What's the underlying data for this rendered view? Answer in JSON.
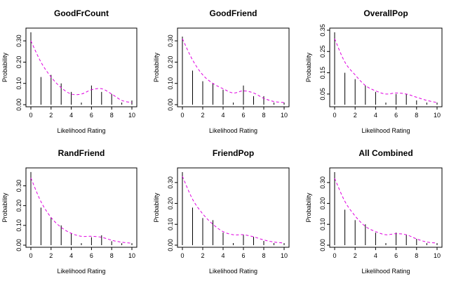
{
  "chart_data": [
    {
      "type": "bar",
      "title": "GoodFrCount",
      "xlabel": "Likelihood Rating",
      "ylabel": "Probability",
      "x": [
        0,
        1,
        2,
        3,
        4,
        5,
        6,
        7,
        8,
        9,
        10
      ],
      "xticks": [
        "0",
        "2",
        "4",
        "6",
        "8",
        "10"
      ],
      "xlim": [
        0,
        10
      ],
      "ylim": [
        0,
        0.35
      ],
      "yticks": [
        "0.00",
        "0.10",
        "0.20",
        "0.30"
      ],
      "values": [
        0.34,
        0.13,
        0.14,
        0.1,
        0.06,
        0.01,
        0.09,
        0.06,
        0.05,
        0.01,
        0.02
      ],
      "density": [
        0.3,
        0.2,
        0.13,
        0.08,
        0.05,
        0.05,
        0.07,
        0.075,
        0.05,
        0.02,
        0.01
      ]
    },
    {
      "type": "bar",
      "title": "GoodFriend",
      "xlabel": "Likelihood Rating",
      "ylabel": "Probability",
      "x": [
        0,
        1,
        2,
        3,
        4,
        5,
        6,
        7,
        8,
        9,
        10
      ],
      "xticks": [
        "0",
        "2",
        "4",
        "6",
        "8",
        "10"
      ],
      "xlim": [
        0,
        10
      ],
      "ylim": [
        0,
        0.35
      ],
      "yticks": [
        "0.00",
        "0.10",
        "0.20",
        "0.30"
      ],
      "values": [
        0.32,
        0.16,
        0.11,
        0.1,
        0.07,
        0.01,
        0.09,
        0.04,
        0.04,
        0.01,
        0.01
      ],
      "density": [
        0.31,
        0.21,
        0.14,
        0.1,
        0.075,
        0.055,
        0.065,
        0.055,
        0.03,
        0.015,
        0.01
      ]
    },
    {
      "type": "bar",
      "title": "OverallPop",
      "xlabel": "Likelihood Rating",
      "ylabel": "Probability",
      "x": [
        0,
        1,
        2,
        3,
        4,
        5,
        6,
        7,
        8,
        9,
        10
      ],
      "xticks": [
        "0",
        "2",
        "4",
        "6",
        "8",
        "10"
      ],
      "xlim": [
        0,
        10
      ],
      "ylim": [
        0,
        0.35
      ],
      "yticks": [
        "0.05",
        "0.15",
        "0.25",
        "0.35"
      ],
      "values": [
        0.34,
        0.15,
        0.12,
        0.09,
        0.06,
        0.01,
        0.05,
        0.05,
        0.02,
        0.01,
        0.01
      ],
      "density": [
        0.31,
        0.2,
        0.14,
        0.09,
        0.065,
        0.05,
        0.055,
        0.05,
        0.035,
        0.02,
        0.01
      ]
    },
    {
      "type": "bar",
      "title": "RandFriend",
      "xlabel": "Likelihood Rating",
      "ylabel": "Probability",
      "x": [
        0,
        1,
        2,
        3,
        4,
        5,
        6,
        7,
        8,
        9,
        10
      ],
      "xticks": [
        "0",
        "2",
        "4",
        "6",
        "8",
        "10"
      ],
      "xlim": [
        0,
        10
      ],
      "ylim": [
        0,
        0.38
      ],
      "yticks": [
        "0.00",
        "0.10",
        "0.20",
        "0.30"
      ],
      "values": [
        0.37,
        0.19,
        0.14,
        0.1,
        0.06,
        0.01,
        0.04,
        0.05,
        0.02,
        0.01,
        0.01
      ],
      "density": [
        0.34,
        0.22,
        0.14,
        0.09,
        0.06,
        0.045,
        0.045,
        0.04,
        0.025,
        0.015,
        0.01
      ]
    },
    {
      "type": "bar",
      "title": "FriendPop",
      "xlabel": "Likelihood Rating",
      "ylabel": "Probability",
      "x": [
        0,
        1,
        2,
        3,
        4,
        5,
        6,
        7,
        8,
        9,
        10
      ],
      "xticks": [
        "0",
        "2",
        "4",
        "6",
        "8",
        "10"
      ],
      "xlim": [
        0,
        10
      ],
      "ylim": [
        0,
        0.36
      ],
      "yticks": [
        "0.00",
        "0.10",
        "0.20",
        "0.30"
      ],
      "values": [
        0.35,
        0.18,
        0.13,
        0.12,
        0.06,
        0.01,
        0.05,
        0.04,
        0.02,
        0.01,
        0.01
      ],
      "density": [
        0.33,
        0.22,
        0.15,
        0.1,
        0.065,
        0.05,
        0.05,
        0.04,
        0.025,
        0.015,
        0.01
      ]
    },
    {
      "type": "bar",
      "title": "All Combined",
      "xlabel": "Likelihood Rating",
      "ylabel": "Probability",
      "x": [
        0,
        1,
        2,
        3,
        4,
        5,
        6,
        7,
        8,
        9,
        10
      ],
      "xticks": [
        "0",
        "2",
        "4",
        "6",
        "8",
        "10"
      ],
      "xlim": [
        0,
        10
      ],
      "ylim": [
        0,
        0.36
      ],
      "yticks": [
        "0.00",
        "0.10",
        "0.20",
        "0.30"
      ],
      "values": [
        0.35,
        0.17,
        0.12,
        0.1,
        0.06,
        0.01,
        0.06,
        0.05,
        0.03,
        0.01,
        0.01
      ],
      "density": [
        0.32,
        0.21,
        0.14,
        0.09,
        0.065,
        0.05,
        0.055,
        0.05,
        0.03,
        0.015,
        0.01
      ]
    }
  ],
  "colors": {
    "density_curve": "#e000e0",
    "bars": "#000000"
  }
}
